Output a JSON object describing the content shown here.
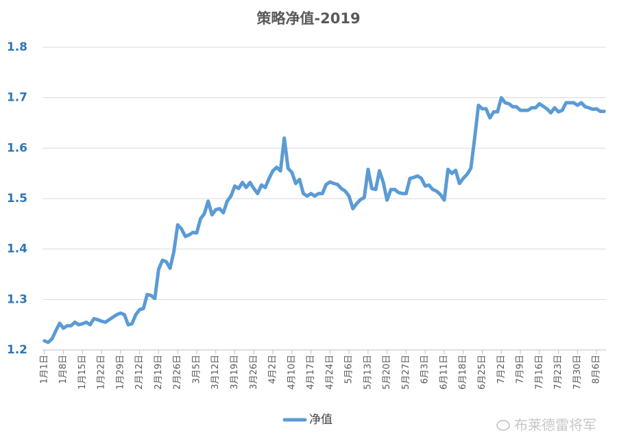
{
  "chart_data": {
    "type": "line",
    "title": "策略净值-2019",
    "categories": [
      "1月1日",
      null,
      null,
      null,
      null,
      "1月8日",
      null,
      null,
      null,
      null,
      "1月15日",
      null,
      null,
      null,
      null,
      "1月22日",
      null,
      null,
      null,
      null,
      "1月29日",
      null,
      null,
      null,
      null,
      "2月12日",
      null,
      null,
      null,
      null,
      "2月19日",
      null,
      null,
      null,
      null,
      "2月26日",
      null,
      null,
      null,
      null,
      "3月5日",
      null,
      null,
      null,
      null,
      "3月12日",
      null,
      null,
      null,
      null,
      "3月19日",
      null,
      null,
      null,
      null,
      "3月26日",
      null,
      null,
      null,
      null,
      "4月2日",
      null,
      null,
      null,
      null,
      "4月10日",
      null,
      null,
      null,
      null,
      "4月17日",
      null,
      null,
      null,
      null,
      "4月24日",
      null,
      null,
      null,
      null,
      "5月6日",
      null,
      null,
      null,
      null,
      "5月13日",
      null,
      null,
      null,
      null,
      "5月20日",
      null,
      null,
      null,
      null,
      "5月27日",
      null,
      null,
      null,
      null,
      "6月3日",
      null,
      null,
      null,
      null,
      "6月11日",
      null,
      null,
      null,
      null,
      "6月18日",
      null,
      null,
      null,
      null,
      "6月25日",
      null,
      null,
      null,
      null,
      "7月2日",
      null,
      null,
      null,
      null,
      "7月9日",
      null,
      null,
      null,
      null,
      "7月16日",
      null,
      null,
      null,
      null,
      "7月23日",
      null,
      null,
      null,
      null,
      "7月30日",
      null,
      null,
      null,
      null,
      "8月6日",
      null,
      null
    ],
    "series": [
      {
        "name": "净值",
        "color": "#5b9bd5",
        "values": [
          1.218,
          1.215,
          1.222,
          1.238,
          1.253,
          1.243,
          1.248,
          1.248,
          1.255,
          1.25,
          1.252,
          1.255,
          1.25,
          1.262,
          1.26,
          1.257,
          1.255,
          1.26,
          1.265,
          1.27,
          1.273,
          1.27,
          1.25,
          1.252,
          1.27,
          1.28,
          1.282,
          1.31,
          1.308,
          1.302,
          1.36,
          1.378,
          1.375,
          1.362,
          1.395,
          1.448,
          1.44,
          1.425,
          1.428,
          1.433,
          1.432,
          1.46,
          1.47,
          1.495,
          1.468,
          1.478,
          1.48,
          1.472,
          1.495,
          1.505,
          1.525,
          1.52,
          1.532,
          1.522,
          1.532,
          1.52,
          1.51,
          1.527,
          1.522,
          1.54,
          1.555,
          1.562,
          1.555,
          1.62,
          1.56,
          1.552,
          1.53,
          1.538,
          1.51,
          1.505,
          1.51,
          1.505,
          1.51,
          1.51,
          1.528,
          1.533,
          1.53,
          1.528,
          1.52,
          1.515,
          1.505,
          1.48,
          1.49,
          1.498,
          1.502,
          1.558,
          1.52,
          1.518,
          1.555,
          1.532,
          1.497,
          1.518,
          1.518,
          1.512,
          1.51,
          1.51,
          1.54,
          1.542,
          1.545,
          1.54,
          1.525,
          1.527,
          1.518,
          1.515,
          1.508,
          1.497,
          1.558,
          1.55,
          1.556,
          1.53,
          1.54,
          1.548,
          1.56,
          1.62,
          1.685,
          1.678,
          1.678,
          1.66,
          1.672,
          1.672,
          1.7,
          1.69,
          1.688,
          1.682,
          1.682,
          1.675,
          1.675,
          1.675,
          1.68,
          1.68,
          1.688,
          1.683,
          1.678,
          1.67,
          1.68,
          1.672,
          1.675,
          1.69,
          1.69,
          1.69,
          1.685,
          1.69,
          1.682,
          1.68,
          1.677,
          1.678,
          1.673,
          1.673
        ]
      }
    ],
    "ylim": [
      1.2,
      1.8
    ],
    "yticks": [
      1.2,
      1.3,
      1.4,
      1.5,
      1.6,
      1.7,
      1.8
    ],
    "grid": true,
    "legend": "bottom",
    "watermark": "布莱德雷将军"
  }
}
